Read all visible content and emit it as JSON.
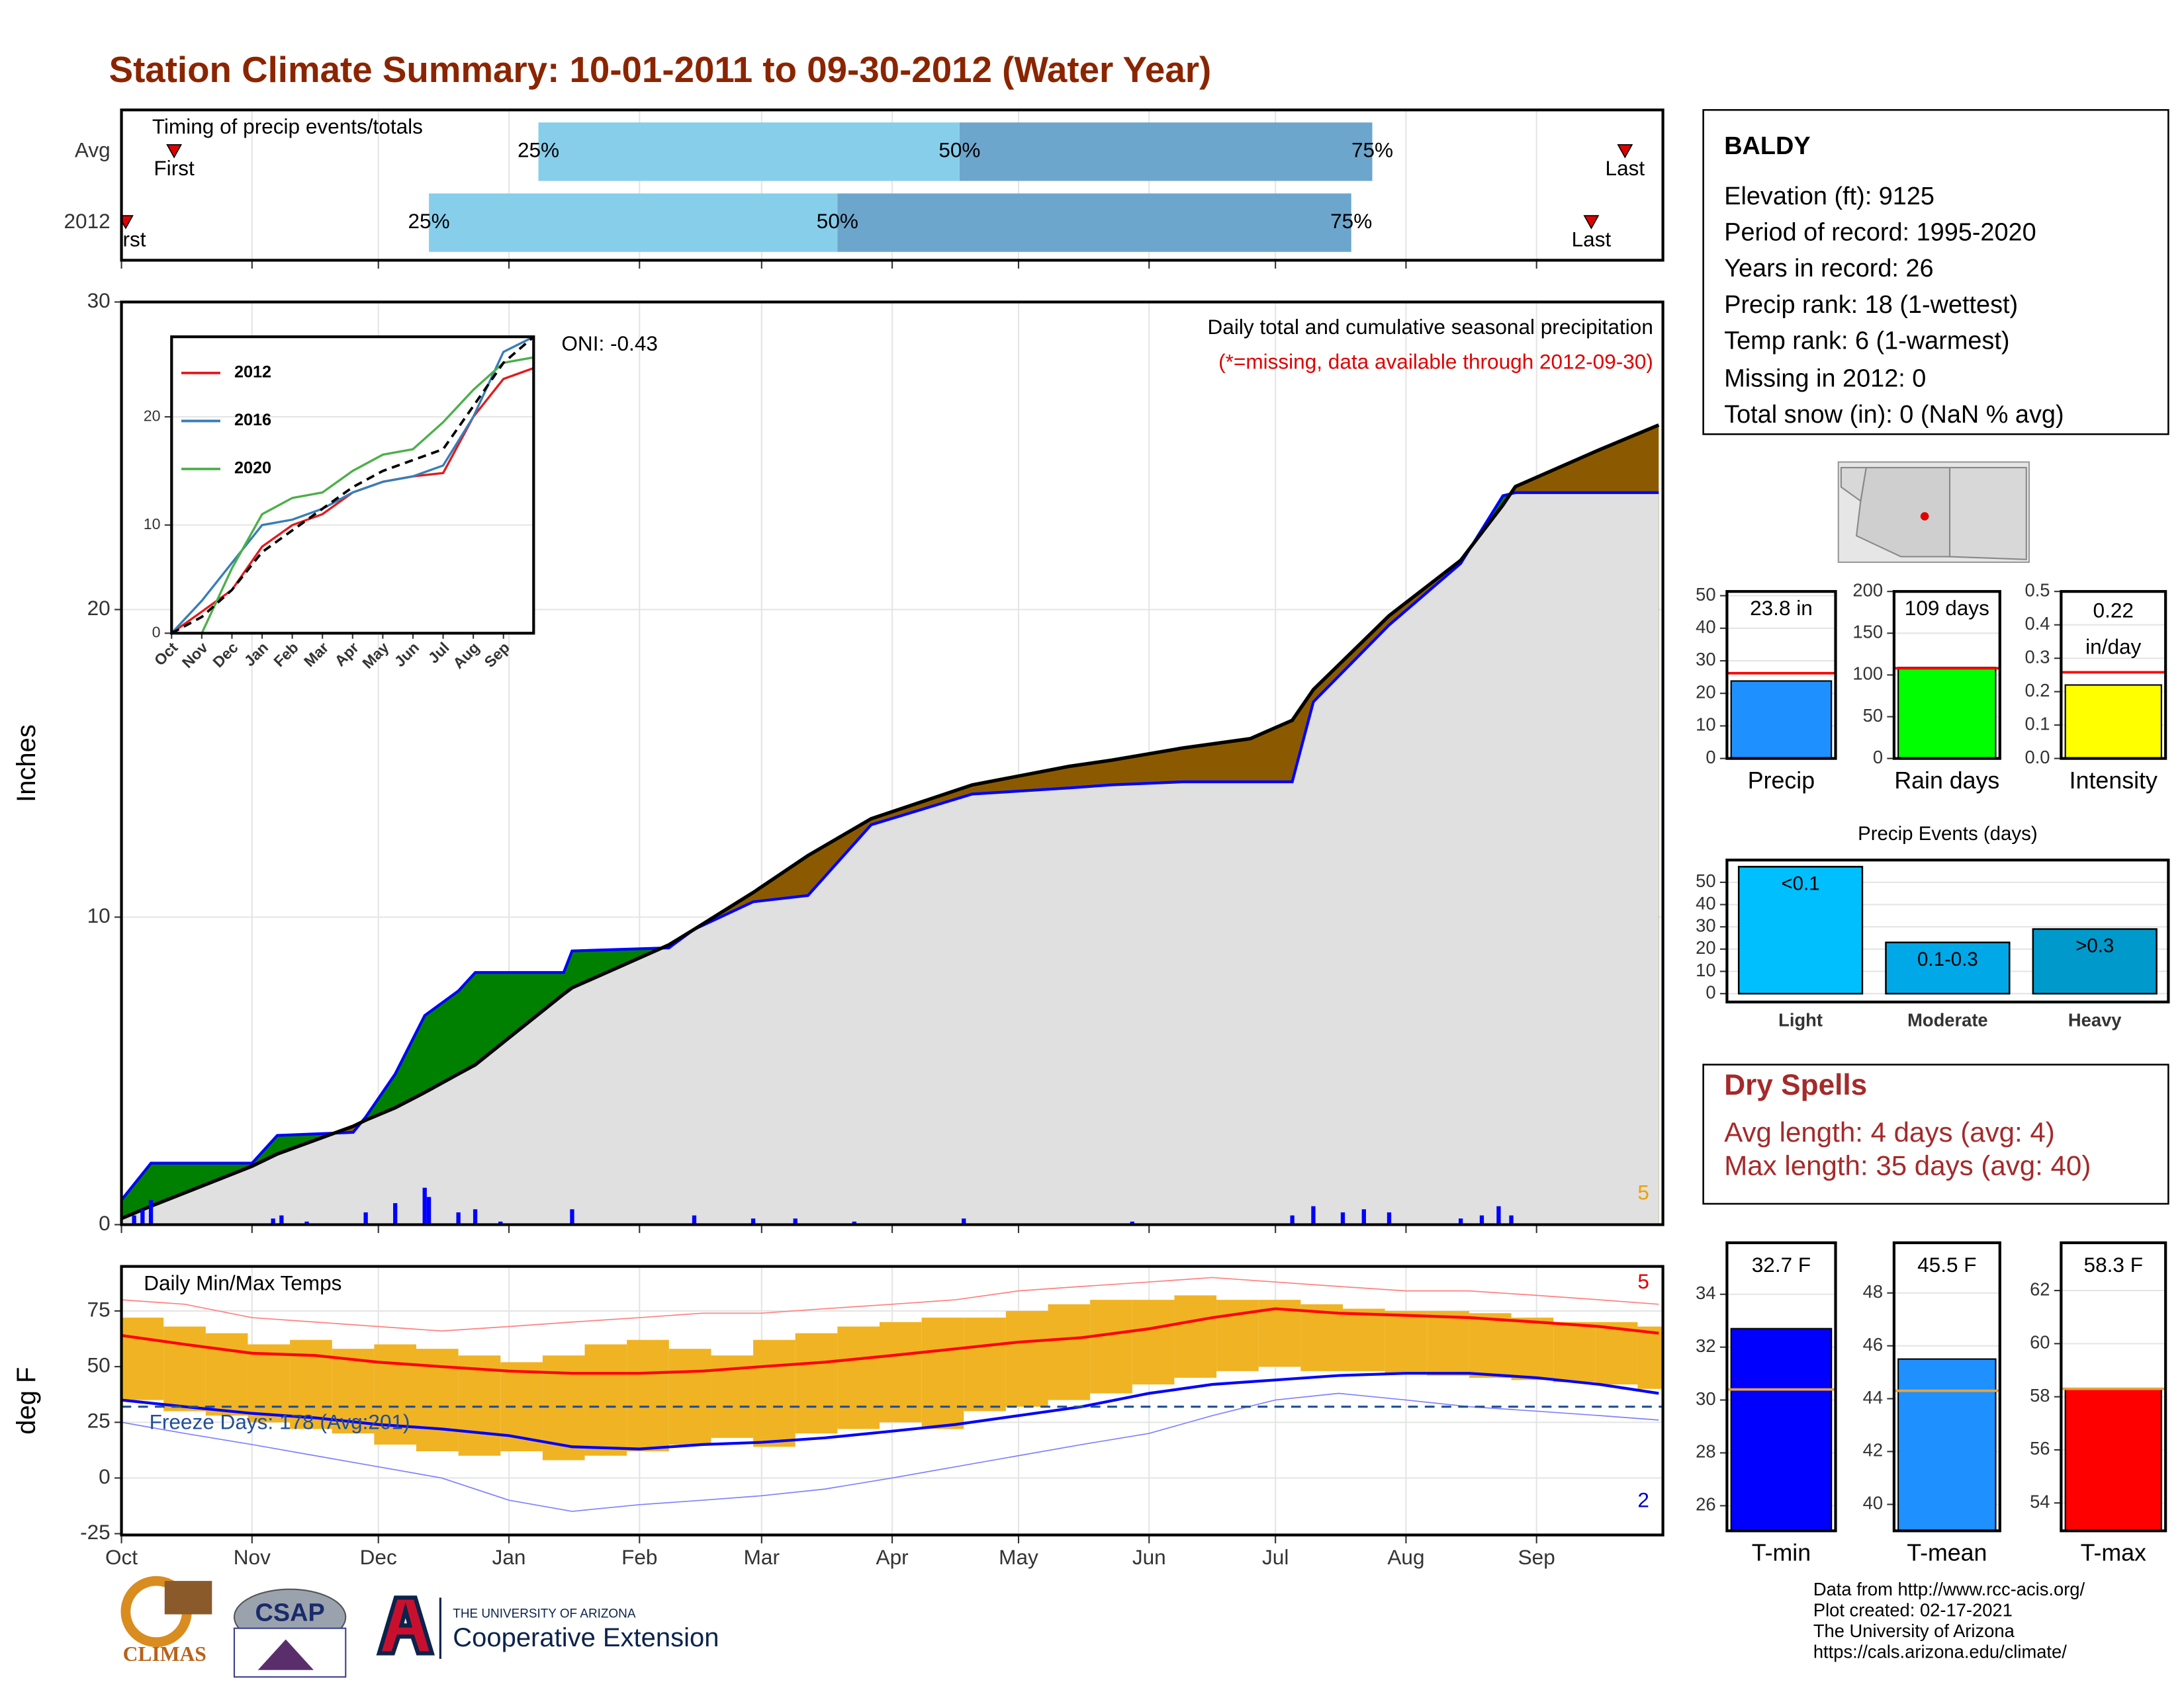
{
  "title": "Station Climate Summary: 10-01-2011 to 09-30-2012 (Water Year)",
  "station": {
    "name": "BALDY",
    "lines": [
      "Elevation (ft): 9125",
      "Period of record: 1995-2020",
      "Years in record: 26",
      "Precip rank: 18 (1-wettest)",
      "Temp rank: 6 (1-warmest)",
      "Missing in 2012: 0",
      "Total snow (in): 0 (NaN % avg)"
    ]
  },
  "dry_spells": {
    "title": "Dry Spells",
    "lines": [
      "Avg length: 4 days (avg: 4)",
      "Max length: 35 days (avg: 40)"
    ]
  },
  "footer": {
    "logos": [
      "CLIMAS",
      "CSAP",
      "THE UNIVERSITY OF ARIZONA",
      "Cooperative Extension"
    ],
    "credits": [
      "Data from http://www.rcc-acis.org/",
      "Plot created: 02-17-2021",
      "The University of Arizona",
      "https://cals.arizona.edu/climate/"
    ]
  },
  "chart_data": [
    {
      "type": "timing",
      "title": "Timing of precip events/totals",
      "xlim": [
        0,
        366
      ],
      "labels": {
        "first": "First",
        "q25": "25%",
        "q50": "50%",
        "q75": "75%",
        "last": "Last"
      },
      "colors": {
        "early": "#87CEEB",
        "late": "#6CA6CD",
        "marker": "#E00000"
      },
      "rows": [
        {
          "name": "Avg",
          "first": 12.5,
          "q25": 99,
          "q50": 199,
          "q75": 297,
          "last": 357
        },
        {
          "name": "2012",
          "first": 1,
          "q25": 73,
          "q50": 170,
          "q75": 292,
          "last": 349
        }
      ]
    },
    {
      "type": "cumulative",
      "ylabel": "Inches",
      "title": "Daily total and cumulative seasonal precipitation",
      "note": "(*=missing, data available through 2012-09-30)",
      "oni": "ONI: -0.43",
      "count": 5,
      "xlim": [
        0,
        366
      ],
      "ylim": [
        0,
        30
      ],
      "yticks": [
        0,
        10,
        20,
        30
      ],
      "grid": true,
      "fills": {
        "above": "#008000",
        "below": "#8B5A00",
        "base": "#E0E0E0"
      },
      "x": [
        0,
        7,
        31,
        37,
        55,
        58,
        65,
        72,
        80,
        84,
        105,
        107,
        130,
        136,
        150,
        163,
        178,
        202,
        225,
        235,
        252,
        268,
        278,
        283,
        301,
        318,
        328,
        331,
        351,
        365
      ],
      "series": [
        {
          "color": "#0000FF",
          "values": [
            0.8,
            2.0,
            2.0,
            2.9,
            3.0,
            3.5,
            4.9,
            6.8,
            7.6,
            8.2,
            8.2,
            8.9,
            9.0,
            9.6,
            10.5,
            10.7,
            13.0,
            14.0,
            14.2,
            14.3,
            14.4,
            14.4,
            14.4,
            17.0,
            19.5,
            21.5,
            23.7,
            23.8,
            23.8,
            23.8
          ]
        },
        {
          "color": "#000000",
          "values": [
            0.2,
            0.6,
            1.9,
            2.3,
            3.2,
            3.4,
            3.8,
            4.3,
            4.9,
            5.2,
            7.5,
            7.7,
            9.1,
            9.6,
            10.8,
            12.0,
            13.2,
            14.3,
            14.9,
            15.1,
            15.5,
            15.8,
            16.4,
            17.4,
            19.8,
            21.6,
            23.4,
            24.0,
            25.2,
            26.0
          ]
        }
      ],
      "daily": {
        "color": "#0000FF",
        "x": [
          3,
          5,
          7,
          36,
          38,
          44,
          58,
          65,
          72,
          73,
          80,
          84,
          90,
          107,
          136,
          150,
          160,
          174,
          200,
          240,
          278,
          283,
          290,
          295,
          301,
          318,
          323,
          327,
          330
        ],
        "values": [
          0.3,
          0.5,
          0.8,
          0.2,
          0.3,
          0.1,
          0.4,
          0.7,
          1.2,
          0.9,
          0.4,
          0.5,
          0.1,
          0.5,
          0.3,
          0.2,
          0.2,
          0.1,
          0.2,
          0.1,
          0.3,
          0.6,
          0.4,
          0.5,
          0.4,
          0.2,
          0.3,
          0.6,
          0.3
        ]
      }
    },
    {
      "type": "temps",
      "ylabel": "deg F",
      "title": "Daily Min/Max Temps",
      "freeze_label": "Freeze Days: 178 (Avg:201)",
      "high_count": 5,
      "low_count": 2,
      "freeze_line": 32,
      "xlim": [
        0,
        366
      ],
      "ylim": [
        -25.6,
        95
      ],
      "yticks": [
        -25,
        0,
        25,
        50,
        75
      ],
      "grid": true,
      "xticks": [
        {
          "value": 0,
          "label": "Oct"
        },
        {
          "value": 31,
          "label": "Nov"
        },
        {
          "value": 61,
          "label": "Dec"
        },
        {
          "value": 92,
          "label": "Jan"
        },
        {
          "value": 123,
          "label": "Feb"
        },
        {
          "value": 152,
          "label": "Mar"
        },
        {
          "value": 183,
          "label": "Apr"
        },
        {
          "value": 213,
          "label": "May"
        },
        {
          "value": 244,
          "label": "Jun"
        },
        {
          "value": 274,
          "label": "Jul"
        },
        {
          "value": 305,
          "label": "Aug"
        },
        {
          "value": 336,
          "label": "Sep"
        }
      ],
      "range": {
        "color": "#F0B323",
        "x": [
          0,
          10,
          20,
          30,
          40,
          50,
          60,
          70,
          80,
          90,
          100,
          110,
          120,
          130,
          140,
          150,
          160,
          170,
          180,
          190,
          200,
          210,
          220,
          230,
          240,
          250,
          260,
          270,
          280,
          290,
          300,
          310,
          320,
          330,
          340,
          350,
          360
        ],
        "lows": [
          35,
          30,
          28,
          25,
          22,
          20,
          15,
          12,
          10,
          12,
          8,
          10,
          12,
          15,
          18,
          14,
          20,
          22,
          25,
          22,
          30,
          32,
          35,
          38,
          42,
          45,
          48,
          50,
          48,
          48,
          47,
          46,
          45,
          44,
          43,
          42,
          40
        ],
        "highs": [
          72,
          68,
          65,
          60,
          62,
          58,
          60,
          58,
          55,
          52,
          55,
          60,
          62,
          58,
          55,
          62,
          65,
          68,
          70,
          72,
          72,
          75,
          78,
          80,
          80,
          82,
          80,
          80,
          78,
          76,
          75,
          75,
          74,
          72,
          70,
          70,
          68
        ]
      },
      "x": [
        0,
        15,
        31,
        46,
        61,
        76,
        92,
        107,
        123,
        138,
        152,
        167,
        183,
        198,
        213,
        228,
        244,
        259,
        274,
        289,
        305,
        320,
        336,
        351,
        365
      ],
      "lines": [
        {
          "color": "#FF8080",
          "width": 0.8,
          "values": [
            80,
            78,
            72,
            70,
            68,
            66,
            68,
            70,
            72,
            74,
            74,
            76,
            78,
            80,
            84,
            86,
            88,
            90,
            88,
            86,
            84,
            84,
            82,
            80,
            78
          ]
        },
        {
          "color": "#8080FF",
          "width": 0.8,
          "values": [
            25,
            20,
            15,
            10,
            5,
            0,
            -10,
            -15,
            -12,
            -10,
            -8,
            -5,
            0,
            5,
            10,
            15,
            20,
            28,
            35,
            38,
            35,
            32,
            30,
            28,
            26
          ]
        },
        {
          "color": "#FF0000",
          "width": 2,
          "values": [
            64,
            60,
            56,
            55,
            52,
            50,
            48,
            47,
            47,
            48,
            50,
            52,
            55,
            58,
            61,
            63,
            67,
            72,
            76,
            74,
            73,
            72,
            70,
            68,
            65
          ]
        },
        {
          "color": "#0000FF",
          "width": 2,
          "values": [
            35,
            32,
            29,
            27,
            24,
            22,
            19,
            14,
            13,
            15,
            16,
            18,
            21,
            24,
            28,
            32,
            38,
            42,
            44,
            46,
            47,
            47,
            45,
            42,
            38
          ]
        }
      ]
    },
    {
      "type": "gauge",
      "label": "Precip",
      "values": [
        23.8
      ],
      "value_labels": [
        "23.8 in"
      ],
      "avg": 26.2,
      "avg_color": "#FF0000",
      "color": "#1E90FF",
      "ylim": [
        0,
        51.3
      ],
      "yticks": [
        0,
        10,
        20,
        30,
        40,
        50
      ]
    },
    {
      "type": "gauge",
      "label": "Rain days",
      "values": [
        109
      ],
      "value_labels": [
        "109 days"
      ],
      "avg": 108,
      "avg_color": "#FF0000",
      "color": "#00FF00",
      "ylim": [
        0,
        200
      ],
      "yticks": [
        0,
        50,
        100,
        150,
        200
      ]
    },
    {
      "type": "gauge",
      "label": "Intensity",
      "values": [
        0.22
      ],
      "value_labels": [
        "0.22 in/day"
      ],
      "wrap": true,
      "avg": 0.258,
      "avg_color": "#FF0000",
      "color": "#FFFF00",
      "ylim": [
        0,
        0.5
      ],
      "yticks": [
        {
          "value": 0,
          "label": "0.0"
        },
        0.1,
        0.2,
        0.3,
        0.4,
        0.5
      ]
    },
    {
      "type": "bar",
      "title": "Precip Events (days)",
      "categories": [
        "Light",
        "Moderate",
        "Heavy"
      ],
      "bar_labels": [
        "<0.1",
        "0.1-0.3",
        ">0.3"
      ],
      "values": [
        57,
        23,
        29
      ],
      "colors": [
        "#00BFFF",
        "#00A8E8",
        "#0099CC"
      ],
      "ylim": [
        -3.75,
        60
      ],
      "yticks": [
        0,
        10,
        20,
        30,
        40,
        50
      ]
    },
    {
      "type": "gauge",
      "label": "T-min",
      "values": [
        32.7
      ],
      "value_labels": [
        "32.7 F"
      ],
      "avg": 30.4,
      "avg_color": "#E8A33D",
      "color": "#0000FF",
      "ylim": [
        25.05,
        35.95
      ],
      "yticks": [
        26,
        28,
        30,
        32,
        34
      ]
    },
    {
      "type": "gauge",
      "label": "T-mean",
      "values": [
        45.5
      ],
      "value_labels": [
        "45.5 F"
      ],
      "avg": 44.3,
      "avg_color": "#E8A33D",
      "color": "#1E90FF",
      "ylim": [
        39.0,
        49.9
      ],
      "yticks": [
        40,
        42,
        44,
        46,
        48
      ]
    },
    {
      "type": "gauge",
      "label": "T-max",
      "values": [
        58.3
      ],
      "value_labels": [
        "58.3 F"
      ],
      "avg": 58.3,
      "avg_color": "#E8A33D",
      "color": "#FF0000",
      "ylim": [
        52.95,
        63.8
      ],
      "yticks": [
        54,
        56,
        58,
        60,
        62
      ]
    },
    {
      "type": "multiline",
      "xlim": [
        0,
        12
      ],
      "ylim": [
        0,
        27.4
      ],
      "yticks": [
        0,
        10,
        20
      ],
      "xticks": [
        {
          "value": 0,
          "label": "Oct"
        },
        {
          "value": 1,
          "label": "Nov"
        },
        {
          "value": 2,
          "label": "Dec"
        },
        {
          "value": 3,
          "label": "Jan"
        },
        {
          "value": 4,
          "label": "Feb"
        },
        {
          "value": 5,
          "label": "Mar"
        },
        {
          "value": 6,
          "label": "Apr"
        },
        {
          "value": 7,
          "label": "May"
        },
        {
          "value": 8,
          "label": "Jun"
        },
        {
          "value": 9,
          "label": "Jul"
        },
        {
          "value": 10,
          "label": "Aug"
        },
        {
          "value": 11,
          "label": "Sep"
        }
      ],
      "x": [
        0,
        1,
        2,
        3,
        4,
        5,
        6,
        7,
        8,
        9,
        10,
        11,
        12
      ],
      "series": [
        {
          "name": "2012",
          "color": "#E41A1C",
          "values": [
            0,
            2,
            4,
            8,
            10,
            11,
            13,
            14,
            14.5,
            14.8,
            20,
            23.5,
            24.5
          ]
        },
        {
          "name": "2016",
          "color": "#377EB8",
          "values": [
            0,
            3,
            6.5,
            10,
            10.5,
            11.5,
            13,
            14,
            14.5,
            15.5,
            20,
            26,
            27.4
          ]
        },
        {
          "name": "2020",
          "color": "#4DAF4A",
          "values": [
            null,
            0,
            6,
            11,
            12.5,
            13,
            15,
            16.5,
            17,
            19.5,
            22.5,
            25,
            25.5
          ]
        }
      ],
      "avg": {
        "color": "#000000",
        "values": [
          0,
          1.5,
          4,
          7.5,
          9.5,
          11.5,
          13.5,
          15,
          16,
          17,
          21,
          25,
          27.4
        ]
      }
    }
  ]
}
